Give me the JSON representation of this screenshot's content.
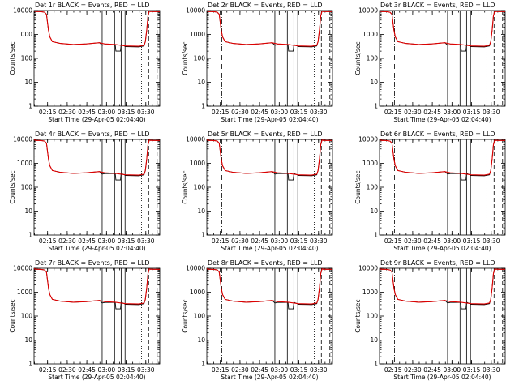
{
  "colors": {
    "events": "#000000",
    "lld": "#e00000",
    "background": "#ffffff"
  },
  "x_tick_labels": [
    "02:15",
    "02:30",
    "02:45",
    "03:00",
    "03:15",
    "03:30"
  ],
  "y_tick_labels": [
    "1",
    "10",
    "100",
    "1000",
    "10000"
  ],
  "ylabel": "Counts/sec",
  "xlabel": "Start Time (29-Apr-05 02:04:40)",
  "chart_data": [
    {
      "title": "Det 1r BLACK = Events, RED = LLD",
      "type": "line",
      "yscale": "log",
      "ylim": [
        1,
        10000
      ],
      "x_unit": "minutes after 02:04:40",
      "xlim": [
        0,
        96
      ]
    },
    {
      "title": "Det 2r BLACK = Events, RED = LLD",
      "type": "line",
      "yscale": "log",
      "ylim": [
        1,
        10000
      ],
      "x_unit": "minutes after 02:04:40",
      "xlim": [
        0,
        96
      ]
    },
    {
      "title": "Det 3r BLACK = Events, RED = LLD",
      "type": "line",
      "yscale": "log",
      "ylim": [
        1,
        10000
      ],
      "x_unit": "minutes after 02:04:40",
      "xlim": [
        0,
        96
      ]
    },
    {
      "title": "Det 4r BLACK = Events, RED = LLD",
      "type": "line",
      "yscale": "log",
      "ylim": [
        1,
        10000
      ],
      "x_unit": "minutes after 02:04:40",
      "xlim": [
        0,
        96
      ]
    },
    {
      "title": "Det 5r BLACK = Events, RED = LLD",
      "type": "line",
      "yscale": "log",
      "ylim": [
        1,
        10000
      ],
      "x_unit": "minutes after 02:04:40",
      "xlim": [
        0,
        96
      ]
    },
    {
      "title": "Det 6r BLACK = Events, RED = LLD",
      "type": "line",
      "yscale": "log",
      "ylim": [
        1,
        10000
      ],
      "x_unit": "minutes after 02:04:40",
      "xlim": [
        0,
        96
      ]
    },
    {
      "title": "Det 7r BLACK = Events, RED = LLD",
      "type": "line",
      "yscale": "log",
      "ylim": [
        1,
        10000
      ],
      "x_unit": "minutes after 02:04:40",
      "xlim": [
        0,
        96
      ]
    },
    {
      "title": "Det 8r BLACK = Events, RED = LLD",
      "type": "line",
      "yscale": "log",
      "ylim": [
        1,
        10000
      ],
      "x_unit": "minutes after 02:04:40",
      "xlim": [
        0,
        96
      ]
    },
    {
      "title": "Det 9r BLACK = Events, RED = LLD",
      "type": "line",
      "yscale": "log",
      "ylim": [
        1,
        10000
      ],
      "x_unit": "minutes after 02:04:40",
      "xlim": [
        0,
        96
      ]
    }
  ],
  "series_template": {
    "x_tick_values": [
      10.33,
      25.33,
      40.33,
      55.33,
      70.33,
      85.33
    ],
    "events": {
      "name": "Events",
      "x": [
        0,
        1,
        4,
        6,
        8,
        9.5,
        11,
        12,
        14,
        20,
        30,
        40,
        50,
        52,
        54,
        62,
        62.5,
        66,
        66.5,
        70,
        80,
        84,
        85,
        86,
        87,
        88,
        89,
        90,
        91,
        92,
        94,
        96
      ],
      "y": [
        9500,
        9000,
        9000,
        8800,
        8500,
        7000,
        1500,
        800,
        500,
        420,
        380,
        400,
        450,
        350,
        370,
        370,
        200,
        200,
        380,
        310,
        300,
        330,
        500,
        1500,
        6000,
        9500,
        9000,
        9200,
        9000,
        9000,
        9000,
        9000
      ]
    },
    "lld": {
      "name": "LLD",
      "x": [
        0,
        2,
        4,
        6,
        8,
        9.5,
        11,
        12,
        14,
        20,
        30,
        40,
        50,
        52,
        54,
        62,
        70,
        80,
        84,
        85,
        86,
        87,
        88,
        89,
        90,
        91,
        92,
        94,
        96
      ],
      "y": [
        9500,
        9000,
        9000,
        8800,
        8500,
        7000,
        1500,
        800,
        500,
        420,
        380,
        400,
        450,
        420,
        400,
        380,
        330,
        320,
        350,
        500,
        1500,
        6000,
        9500,
        9000,
        9200,
        9000,
        9000,
        9000,
        9000
      ]
    },
    "vlines_solid": [
      52,
      61.5,
      66.5,
      69.5
    ],
    "vlines_dashdot": [
      11.5
    ],
    "vlines_dotted": [
      82
    ],
    "vlines_dashed": [
      87.5,
      94
    ]
  }
}
